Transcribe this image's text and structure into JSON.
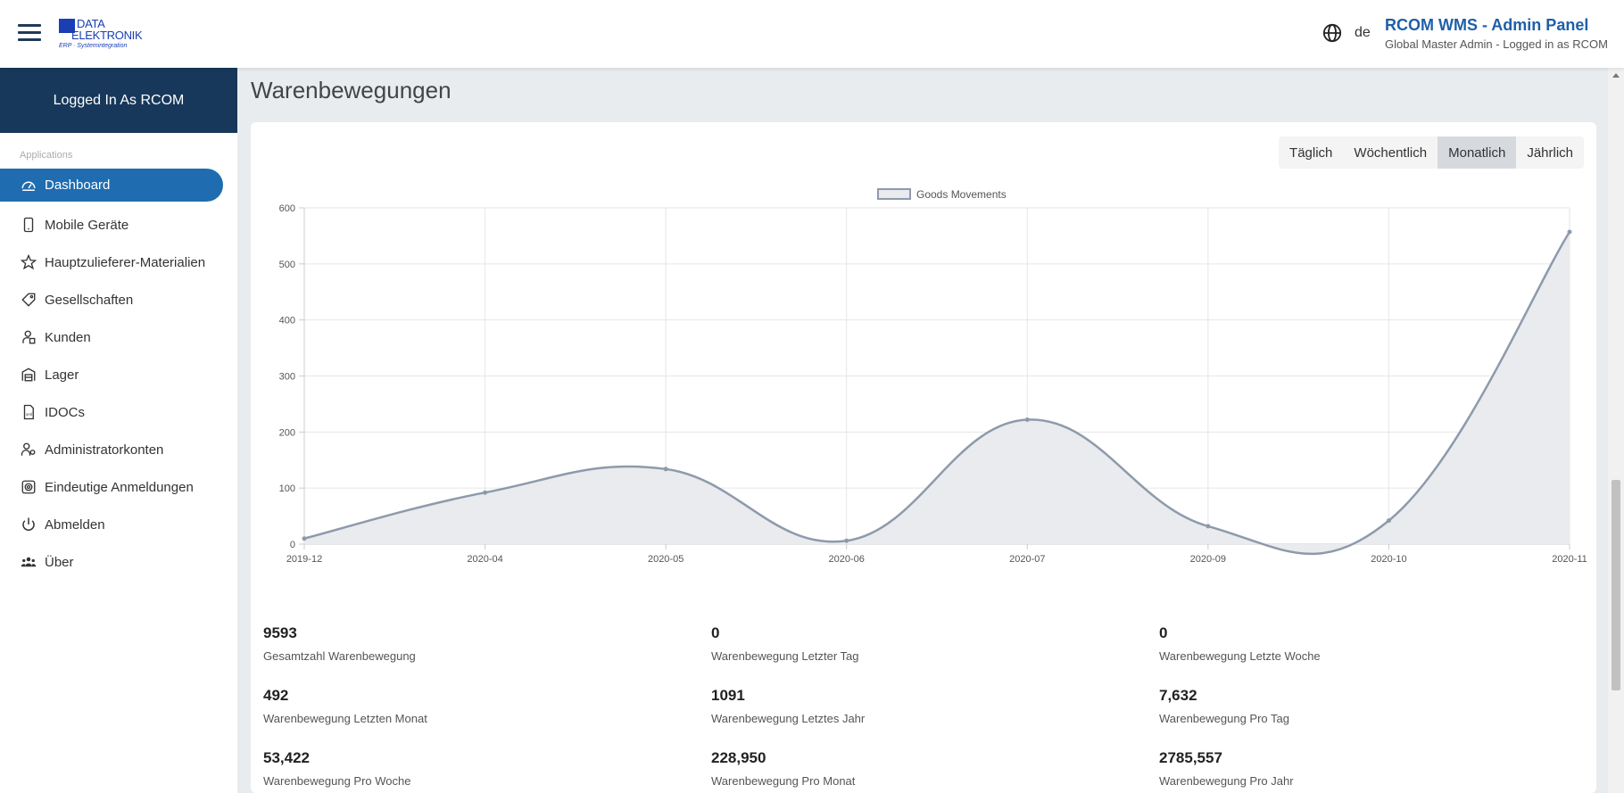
{
  "header": {
    "logo_line1": "DATA",
    "logo_line2": "ELEKTRONIK",
    "logo_line3": "ERP · Systemintegration",
    "lang_code": "de",
    "app_title": "RCOM WMS - Admin Panel",
    "app_subtitle": "Global Master Admin - Logged in as RCOM"
  },
  "sidebar": {
    "user_label": "Logged In As RCOM",
    "section_label": "Applications",
    "items": [
      {
        "label": "Dashboard",
        "icon": "dashboard-icon",
        "active": true
      },
      {
        "label": "Mobile Geräte",
        "icon": "mobile-device-icon"
      },
      {
        "label": "Hauptzulieferer-Materialien",
        "icon": "star-icon"
      },
      {
        "label": "Gesellschaften",
        "icon": "tag-icon"
      },
      {
        "label": "Kunden",
        "icon": "customer-icon"
      },
      {
        "label": "Lager",
        "icon": "warehouse-icon"
      },
      {
        "label": "IDOCs",
        "icon": "document-icon"
      },
      {
        "label": "Administratorkonten",
        "icon": "admin-accounts-icon"
      },
      {
        "label": "Eindeutige Anmeldungen",
        "icon": "fingerprint-icon"
      },
      {
        "label": "Abmelden",
        "icon": "power-icon"
      },
      {
        "label": "Über",
        "icon": "users-icon"
      }
    ]
  },
  "main": {
    "title": "Warenbewegungen",
    "periods": [
      {
        "label": "Täglich",
        "active": false
      },
      {
        "label": "Wöchentlich",
        "active": false
      },
      {
        "label": "Monatlich",
        "active": true
      },
      {
        "label": "Jährlich",
        "active": false
      }
    ],
    "stats": [
      {
        "value": "9593",
        "label": "Gesamtzahl Warenbewegung"
      },
      {
        "value": "0",
        "label": "Warenbewegung Letzter Tag"
      },
      {
        "value": "0",
        "label": "Warenbewegung Letzte Woche"
      },
      {
        "value": "492",
        "label": "Warenbewegung Letzten Monat"
      },
      {
        "value": "1091",
        "label": "Warenbewegung Letztes Jahr"
      },
      {
        "value": "7,632",
        "label": "Warenbewegung Pro Tag"
      },
      {
        "value": "53,422",
        "label": "Warenbewegung Pro Woche"
      },
      {
        "value": "228,950",
        "label": "Warenbewegung Pro Monat"
      },
      {
        "value": "2785,557",
        "label": "Warenbewegung Pro Jahr"
      }
    ]
  },
  "chart_data": {
    "type": "area",
    "categories": [
      "2019-12",
      "2020-04",
      "2020-05",
      "2020-06",
      "2020-07",
      "2020-09",
      "2020-10",
      "2020-11"
    ],
    "series": [
      {
        "name": "Goods Movements",
        "values": [
          10,
          92,
          134,
          6,
          222,
          32,
          42,
          557
        ]
      }
    ],
    "ylim": [
      0,
      600
    ],
    "yticks": [
      0,
      100,
      200,
      300,
      400,
      500,
      600
    ],
    "grid": true,
    "legend": "top-center",
    "colors": {
      "line": "#8e9aab",
      "fill": "#e9ebee"
    }
  }
}
